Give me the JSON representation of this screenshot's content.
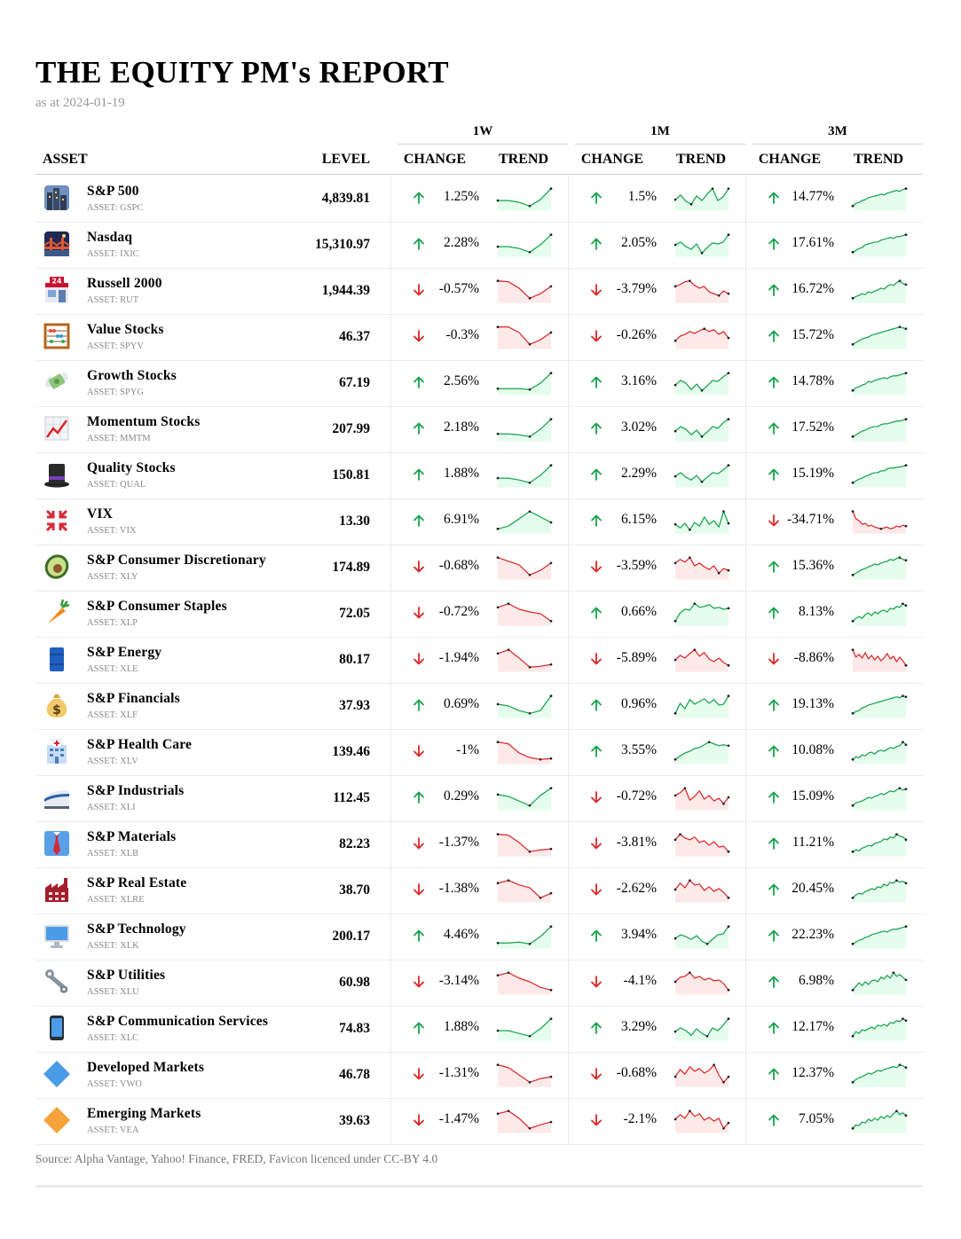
{
  "report": {
    "title": "THE EQUITY PM's REPORT",
    "subtitle": "as at 2024-01-19",
    "footer": "Source: Alpha Vantage, Yahoo! Finance, FRED, Favicon licenced under CC-BY 4.0"
  },
  "colors": {
    "up": "#16a34a",
    "down": "#dc2626",
    "up_fill": "#dcfce7",
    "down_fill": "#fee2e2"
  },
  "headers": {
    "asset": "ASSET",
    "level": "LEVEL",
    "groups": [
      "1W",
      "1M",
      "3M"
    ],
    "change": "CHANGE",
    "trend": "TREND"
  },
  "rows": [
    {
      "name": "S&P 500",
      "ticker": "ASSET: GSPC",
      "level": "4,839.81",
      "icon": "cityscape-icon",
      "w": "1.25%",
      "m": "1.5%",
      "q": "14.77%",
      "sw": [
        0.35,
        0.35,
        0.25,
        0.05,
        0.4,
        1
      ],
      "sm": [
        0.4,
        0.65,
        0.3,
        0.15,
        0.6,
        0.35,
        0.7,
        1,
        0.35,
        0.55,
        1
      ],
      "sq": [
        0.05,
        0.2,
        0.25,
        0.35,
        0.4,
        0.5,
        0.55,
        0.6,
        0.62,
        0.7,
        0.65,
        0.75,
        0.8,
        0.85,
        0.9,
        0.85,
        0.95,
        1
      ]
    },
    {
      "name": "Nasdaq",
      "ticker": "ASSET: IXIC",
      "level": "15,310.97",
      "icon": "night-bridge-icon",
      "w": "2.28%",
      "m": "2.05%",
      "q": "17.61%",
      "sw": [
        0.35,
        0.35,
        0.25,
        0.05,
        0.45,
        1
      ],
      "sm": [
        0.45,
        0.6,
        0.35,
        0.2,
        0.5,
        0.0,
        0.3,
        0.55,
        0.5,
        0.6,
        1
      ],
      "sq": [
        0.05,
        0.15,
        0.25,
        0.3,
        0.45,
        0.5,
        0.55,
        0.6,
        0.6,
        0.7,
        0.75,
        0.8,
        0.85,
        0.8,
        0.9,
        0.9,
        0.95,
        1
      ]
    },
    {
      "name": "Russell 2000",
      "ticker": "ASSET: RUT",
      "level": "1,944.39",
      "icon": "store-icon",
      "w": "-0.57%",
      "m": "-3.79%",
      "q": "16.72%",
      "sw": [
        1,
        0.95,
        0.6,
        0.05,
        0.3,
        0.7
      ],
      "sm": [
        0.7,
        0.8,
        0.95,
        1,
        0.75,
        0.6,
        0.7,
        0.4,
        0.3,
        0.2,
        0.45,
        0.3
      ],
      "sq": [
        0.05,
        0.15,
        0.2,
        0.3,
        0.25,
        0.4,
        0.35,
        0.45,
        0.5,
        0.6,
        0.55,
        0.7,
        0.8,
        0.75,
        0.9,
        1,
        0.85,
        0.8
      ]
    },
    {
      "name": "Value Stocks",
      "ticker": "ASSET: SPYV",
      "level": "46.37",
      "icon": "abacus-icon",
      "w": "-0.3%",
      "m": "-0.26%",
      "q": "15.72%",
      "sw": [
        1,
        1,
        0.7,
        0.05,
        0.3,
        0.7
      ],
      "sm": [
        0.25,
        0.5,
        0.6,
        0.75,
        0.65,
        0.8,
        0.9,
        0.75,
        0.85,
        0.6,
        0.75,
        0.4
      ],
      "sq": [
        0.05,
        0.15,
        0.25,
        0.35,
        0.4,
        0.45,
        0.55,
        0.6,
        0.65,
        0.7,
        0.75,
        0.8,
        0.85,
        0.9,
        0.95,
        1,
        0.95,
        0.9
      ]
    },
    {
      "name": "Growth Stocks",
      "ticker": "ASSET: SPYG",
      "level": "67.19",
      "icon": "money-wings-icon",
      "w": "2.56%",
      "m": "3.16%",
      "q": "14.78%",
      "sw": [
        0.15,
        0.15,
        0.15,
        0.1,
        0.45,
        1
      ],
      "sm": [
        0.35,
        0.6,
        0.45,
        0.1,
        0.4,
        0.05,
        0.3,
        0.6,
        0.55,
        0.8,
        1
      ],
      "sq": [
        0.05,
        0.2,
        0.25,
        0.35,
        0.4,
        0.55,
        0.5,
        0.6,
        0.65,
        0.7,
        0.75,
        0.7,
        0.8,
        0.85,
        0.85,
        0.9,
        0.95,
        1
      ]
    },
    {
      "name": "Momentum Stocks",
      "ticker": "ASSET: MMTM",
      "level": "207.99",
      "icon": "chart-up-icon",
      "w": "2.18%",
      "m": "3.02%",
      "q": "17.52%",
      "sw": [
        0.2,
        0.2,
        0.15,
        0.05,
        0.45,
        1
      ],
      "sm": [
        0.35,
        0.6,
        0.45,
        0.15,
        0.4,
        0.05,
        0.3,
        0.6,
        0.5,
        0.8,
        1
      ],
      "sq": [
        0.05,
        0.15,
        0.25,
        0.35,
        0.4,
        0.5,
        0.55,
        0.6,
        0.6,
        0.7,
        0.75,
        0.75,
        0.8,
        0.85,
        0.9,
        0.9,
        0.95,
        1
      ]
    },
    {
      "name": "Quality Stocks",
      "ticker": "ASSET: QUAL",
      "level": "150.81",
      "icon": "top-hat-icon",
      "w": "1.88%",
      "m": "2.29%",
      "q": "15.19%",
      "sw": [
        0.3,
        0.3,
        0.2,
        0.05,
        0.45,
        1
      ],
      "sm": [
        0.4,
        0.6,
        0.35,
        0.2,
        0.45,
        0.1,
        0.35,
        0.6,
        0.55,
        0.75,
        1
      ],
      "sq": [
        0.05,
        0.15,
        0.25,
        0.3,
        0.4,
        0.45,
        0.55,
        0.6,
        0.6,
        0.7,
        0.7,
        0.8,
        0.85,
        0.85,
        0.9,
        0.9,
        0.95,
        1
      ]
    },
    {
      "name": "VIX",
      "ticker": "ASSET: VIX",
      "level": "13.30",
      "icon": "anger-symbol-icon",
      "w": "6.91%",
      "m": "6.15%",
      "q": "-34.71%",
      "sw": [
        0.05,
        0.2,
        0.6,
        1,
        0.7,
        0.4
      ],
      "sm": [
        0.3,
        0.1,
        0.35,
        0.0,
        0.4,
        0.2,
        0.7,
        0.3,
        0.5,
        0.15,
        1,
        0.35
      ],
      "sq": [
        1,
        0.6,
        0.5,
        0.3,
        0.35,
        0.2,
        0.25,
        0.15,
        0.1,
        0.05,
        0.1,
        0.15,
        0.05,
        0.1,
        0.2,
        0.15,
        0.25,
        0.2
      ]
    },
    {
      "name": "S&P Consumer Discretionary",
      "ticker": "ASSET: XLY",
      "level": "174.89",
      "icon": "avocado-icon",
      "w": "-0.68%",
      "m": "-3.59%",
      "q": "15.36%",
      "sw": [
        1,
        0.8,
        0.6,
        0.05,
        0.3,
        0.7
      ],
      "sm": [
        0.7,
        0.9,
        0.75,
        1,
        0.55,
        0.7,
        0.5,
        0.35,
        0.55,
        0.15,
        0.4,
        0.3
      ],
      "sq": [
        0.05,
        0.15,
        0.25,
        0.35,
        0.4,
        0.5,
        0.55,
        0.65,
        0.6,
        0.7,
        0.75,
        0.8,
        0.9,
        0.85,
        0.95,
        1,
        0.9,
        0.85
      ]
    },
    {
      "name": "S&P Consumer Staples",
      "ticker": "ASSET: XLP",
      "level": "72.05",
      "icon": "carrot-icon",
      "w": "-0.72%",
      "m": "0.66%",
      "q": "8.13%",
      "sw": [
        0.8,
        1,
        0.7,
        0.55,
        0.45,
        0.05
      ],
      "sm": [
        0.05,
        0.5,
        0.7,
        0.65,
        1,
        0.8,
        0.85,
        0.95,
        0.75,
        0.8,
        0.7,
        0.75
      ],
      "sq": [
        0.05,
        0.2,
        0.3,
        0.2,
        0.4,
        0.5,
        0.35,
        0.55,
        0.45,
        0.6,
        0.65,
        0.55,
        0.75,
        0.7,
        0.85,
        0.8,
        1,
        0.9
      ]
    },
    {
      "name": "S&P Energy",
      "ticker": "ASSET: XLE",
      "level": "80.17",
      "icon": "oil-drum-icon",
      "w": "-1.94%",
      "m": "-5.89%",
      "q": "-8.86%",
      "sw": [
        0.8,
        1,
        0.55,
        0.05,
        0.1,
        0.2
      ],
      "sm": [
        0.45,
        0.7,
        0.55,
        0.8,
        1,
        0.65,
        0.85,
        0.5,
        0.35,
        0.55,
        0.3,
        0.15
      ],
      "sq": [
        1,
        0.6,
        0.75,
        0.55,
        0.85,
        0.5,
        0.7,
        0.45,
        0.65,
        0.4,
        0.55,
        0.8,
        0.5,
        0.65,
        0.35,
        0.6,
        0.4,
        0.15
      ]
    },
    {
      "name": "S&P Financials",
      "ticker": "ASSET: XLF",
      "level": "37.93",
      "icon": "money-bag-icon",
      "w": "0.69%",
      "m": "0.96%",
      "q": "19.13%",
      "sw": [
        0.55,
        0.45,
        0.2,
        0.05,
        0.2,
        1
      ],
      "sm": [
        0.05,
        0.6,
        0.3,
        0.8,
        0.55,
        0.7,
        0.85,
        0.6,
        0.8,
        0.5,
        0.55,
        1
      ],
      "sq": [
        0.05,
        0.15,
        0.2,
        0.35,
        0.4,
        0.5,
        0.55,
        0.6,
        0.65,
        0.7,
        0.75,
        0.8,
        0.85,
        0.9,
        0.95,
        0.9,
        1,
        0.95
      ]
    },
    {
      "name": "S&P Health Care",
      "ticker": "ASSET: XLV",
      "level": "139.46",
      "icon": "hospital-icon",
      "w": "-1%",
      "m": "3.55%",
      "q": "10.08%",
      "sw": [
        1,
        0.9,
        0.4,
        0.15,
        0.05,
        0.1
      ],
      "sm": [
        0.05,
        0.25,
        0.4,
        0.5,
        0.65,
        0.7,
        0.85,
        1,
        0.9,
        0.8,
        0.85,
        0.8
      ],
      "sq": [
        0.05,
        0.2,
        0.15,
        0.3,
        0.25,
        0.4,
        0.45,
        0.35,
        0.5,
        0.55,
        0.5,
        0.6,
        0.7,
        0.65,
        0.75,
        0.8,
        1,
        0.85
      ]
    },
    {
      "name": "S&P Industrials",
      "ticker": "ASSET: XLI",
      "level": "112.45",
      "icon": "bullet-train-icon",
      "w": "0.29%",
      "m": "-0.72%",
      "q": "15.09%",
      "sw": [
        0.65,
        0.55,
        0.3,
        0.05,
        0.6,
        1
      ],
      "sm": [
        0.6,
        0.75,
        1,
        0.35,
        0.55,
        0.85,
        0.4,
        0.6,
        0.3,
        0.45,
        0.15,
        0.5
      ],
      "sq": [
        0.05,
        0.2,
        0.25,
        0.3,
        0.4,
        0.5,
        0.45,
        0.55,
        0.6,
        0.7,
        0.65,
        0.75,
        0.85,
        0.8,
        0.9,
        1,
        0.9,
        0.95
      ]
    },
    {
      "name": "S&P Materials",
      "ticker": "ASSET: XLB",
      "level": "82.23",
      "icon": "necktie-icon",
      "w": "-1.37%",
      "m": "-3.81%",
      "q": "11.21%",
      "sw": [
        1,
        0.95,
        0.55,
        0.05,
        0.15,
        0.2
      ],
      "sm": [
        0.7,
        1,
        0.8,
        0.7,
        0.85,
        0.55,
        0.65,
        0.4,
        0.6,
        0.3,
        0.35,
        0.05
      ],
      "sq": [
        0.05,
        0.15,
        0.1,
        0.25,
        0.3,
        0.4,
        0.35,
        0.5,
        0.55,
        0.6,
        0.75,
        0.7,
        0.85,
        0.8,
        1,
        0.9,
        0.85,
        0.7
      ]
    },
    {
      "name": "S&P Real Estate",
      "ticker": "ASSET: XLRE",
      "level": "38.70",
      "icon": "factory-icon",
      "w": "-1.38%",
      "m": "-2.62%",
      "q": "20.45%",
      "sw": [
        0.85,
        1,
        0.75,
        0.6,
        0.05,
        0.3
      ],
      "sm": [
        0.5,
        0.85,
        0.6,
        1,
        0.75,
        0.8,
        0.45,
        0.65,
        0.4,
        0.55,
        0.35,
        0.05
      ],
      "sq": [
        0.05,
        0.2,
        0.3,
        0.25,
        0.4,
        0.45,
        0.55,
        0.5,
        0.65,
        0.6,
        0.8,
        0.7,
        0.9,
        0.85,
        1,
        0.9,
        0.95,
        0.85
      ]
    },
    {
      "name": "S&P Technology",
      "ticker": "ASSET: XLK",
      "level": "200.17",
      "icon": "desktop-computer-icon",
      "w": "4.46%",
      "m": "3.94%",
      "q": "22.23%",
      "sw": [
        0.1,
        0.1,
        0.15,
        0.05,
        0.45,
        1
      ],
      "sm": [
        0.35,
        0.55,
        0.45,
        0.3,
        0.5,
        0.2,
        0.05,
        0.3,
        0.55,
        0.6,
        1
      ],
      "sq": [
        0.05,
        0.15,
        0.25,
        0.3,
        0.4,
        0.45,
        0.55,
        0.6,
        0.65,
        0.7,
        0.75,
        0.7,
        0.8,
        0.85,
        0.85,
        0.9,
        0.95,
        1
      ]
    },
    {
      "name": "S&P Utilities",
      "ticker": "ASSET: XLU",
      "level": "60.98",
      "icon": "wrench-nut-icon",
      "w": "-3.14%",
      "m": "-4.1%",
      "q": "6.98%",
      "sw": [
        0.85,
        1,
        0.7,
        0.5,
        0.2,
        0.05
      ],
      "sm": [
        0.5,
        0.75,
        0.8,
        1,
        0.7,
        0.8,
        0.6,
        0.7,
        0.55,
        0.6,
        0.4,
        0.05
      ],
      "sq": [
        0.05,
        0.25,
        0.45,
        0.3,
        0.5,
        0.35,
        0.55,
        0.6,
        0.5,
        0.75,
        0.65,
        0.85,
        0.7,
        1,
        0.8,
        0.9,
        0.75,
        0.6
      ]
    },
    {
      "name": "S&P Communication Services",
      "ticker": "ASSET: XLC",
      "level": "74.83",
      "icon": "mobile-phone-icon",
      "w": "1.88%",
      "m": "3.29%",
      "q": "12.17%",
      "sw": [
        0.35,
        0.35,
        0.2,
        0.05,
        0.45,
        1
      ],
      "sm": [
        0.3,
        0.5,
        0.35,
        0.1,
        0.45,
        0.2,
        0.05,
        0.5,
        0.35,
        0.65,
        1
      ],
      "sq": [
        0.05,
        0.3,
        0.2,
        0.4,
        0.35,
        0.45,
        0.55,
        0.45,
        0.65,
        0.6,
        0.7,
        0.6,
        0.8,
        0.75,
        0.9,
        0.85,
        1,
        0.9
      ]
    },
    {
      "name": "Developed Markets",
      "ticker": "ASSET: VWO",
      "level": "46.78",
      "icon": "blue-diamond-icon",
      "w": "-1.31%",
      "m": "-0.68%",
      "q": "12.37%",
      "sw": [
        1,
        0.85,
        0.45,
        0.05,
        0.25,
        0.35
      ],
      "sm": [
        0.35,
        0.75,
        0.5,
        0.9,
        0.65,
        0.8,
        0.55,
        0.7,
        1,
        0.45,
        0.05,
        0.35
      ],
      "sq": [
        0.05,
        0.2,
        0.3,
        0.35,
        0.45,
        0.55,
        0.5,
        0.6,
        0.7,
        0.65,
        0.75,
        0.8,
        0.85,
        0.9,
        0.85,
        1,
        0.95,
        0.85
      ]
    },
    {
      "name": "Emerging Markets",
      "ticker": "ASSET: VEA",
      "level": "39.63",
      "icon": "orange-diamond-icon",
      "w": "-1.47%",
      "m": "-2.1%",
      "q": "7.05%",
      "sw": [
        0.85,
        1,
        0.6,
        0.05,
        0.25,
        0.4
      ],
      "sm": [
        0.55,
        0.8,
        0.6,
        1,
        0.7,
        0.85,
        0.5,
        0.65,
        0.45,
        0.6,
        0.05,
        0.35
      ],
      "sq": [
        0.05,
        0.25,
        0.2,
        0.4,
        0.35,
        0.55,
        0.45,
        0.6,
        0.5,
        0.7,
        0.6,
        0.75,
        0.65,
        0.85,
        1,
        0.8,
        0.9,
        0.75
      ]
    }
  ]
}
